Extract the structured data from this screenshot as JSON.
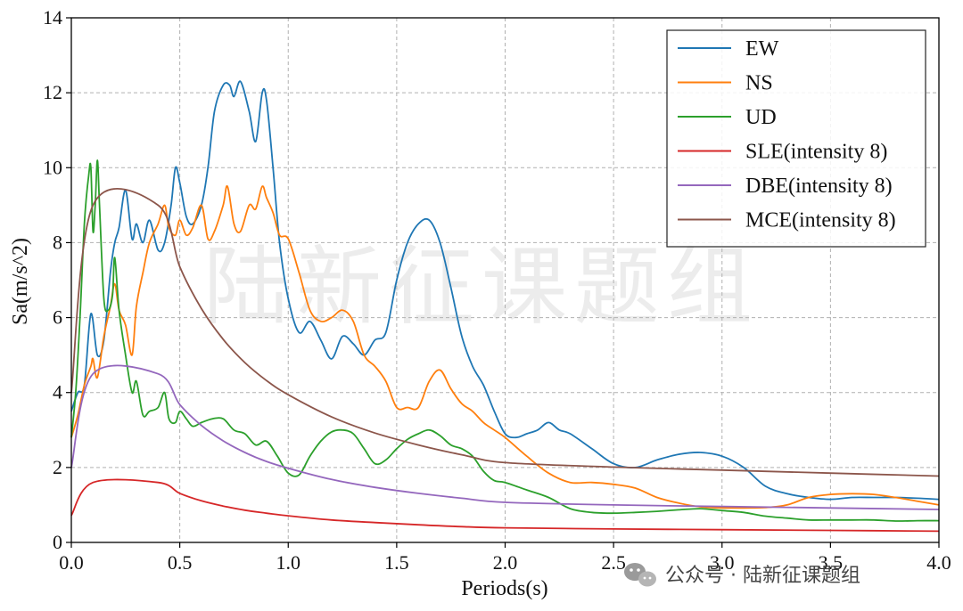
{
  "chart_data": {
    "type": "line",
    "xlabel": "Periods(s)",
    "ylabel": "Sa(m/s^2)",
    "xlim": [
      0,
      4.0
    ],
    "ylim": [
      0,
      14
    ],
    "xticks": [
      0.0,
      0.5,
      1.0,
      1.5,
      2.0,
      2.5,
      3.0,
      3.5,
      4.0
    ],
    "xtick_labels": [
      "0.0",
      "0.5",
      "1.0",
      "1.5",
      "2.0",
      "2.5",
      "3.0",
      "3.5",
      "4.0"
    ],
    "yticks": [
      0,
      2,
      4,
      6,
      8,
      10,
      12,
      14
    ],
    "ytick_labels": [
      "0",
      "2",
      "4",
      "6",
      "8",
      "10",
      "12",
      "14"
    ],
    "grid": true,
    "legend_position": "top-right",
    "series": [
      {
        "name": "EW",
        "color": "#1f77b4",
        "x": [
          0.0,
          0.03,
          0.06,
          0.09,
          0.12,
          0.15,
          0.18,
          0.2,
          0.22,
          0.25,
          0.28,
          0.3,
          0.33,
          0.36,
          0.4,
          0.43,
          0.46,
          0.48,
          0.5,
          0.53,
          0.56,
          0.6,
          0.63,
          0.66,
          0.7,
          0.73,
          0.75,
          0.78,
          0.82,
          0.85,
          0.88,
          0.9,
          0.93,
          0.96,
          1.0,
          1.05,
          1.1,
          1.15,
          1.2,
          1.25,
          1.3,
          1.35,
          1.4,
          1.45,
          1.5,
          1.55,
          1.6,
          1.65,
          1.7,
          1.75,
          1.8,
          1.85,
          1.9,
          1.95,
          2.0,
          2.05,
          2.1,
          2.15,
          2.2,
          2.25,
          2.3,
          2.4,
          2.5,
          2.6,
          2.7,
          2.8,
          2.9,
          3.0,
          3.1,
          3.2,
          3.3,
          3.4,
          3.5,
          3.6,
          3.7,
          3.8,
          3.9,
          4.0
        ],
        "y": [
          3.5,
          4.0,
          4.2,
          6.1,
          5.0,
          5.4,
          7.2,
          8.0,
          8.4,
          9.4,
          8.1,
          8.5,
          8.0,
          8.6,
          7.8,
          8.0,
          9.0,
          10.0,
          9.6,
          8.7,
          8.5,
          9.0,
          10.0,
          11.5,
          12.2,
          12.2,
          11.9,
          12.3,
          11.5,
          10.7,
          12.0,
          11.8,
          10.0,
          8.0,
          6.5,
          5.6,
          5.9,
          5.4,
          4.9,
          5.5,
          5.3,
          5.0,
          5.4,
          5.6,
          7.0,
          8.0,
          8.5,
          8.6,
          8.0,
          6.8,
          5.5,
          4.7,
          4.2,
          3.5,
          2.9,
          2.8,
          2.9,
          3.0,
          3.2,
          3.0,
          2.9,
          2.5,
          2.1,
          2.0,
          2.2,
          2.35,
          2.4,
          2.3,
          2.0,
          1.5,
          1.3,
          1.2,
          1.15,
          1.2,
          1.2,
          1.2,
          1.18,
          1.15
        ]
      },
      {
        "name": "NS",
        "color": "#ff7f0e",
        "x": [
          0.0,
          0.03,
          0.06,
          0.09,
          0.1,
          0.12,
          0.15,
          0.18,
          0.2,
          0.22,
          0.25,
          0.28,
          0.3,
          0.33,
          0.36,
          0.4,
          0.43,
          0.45,
          0.48,
          0.5,
          0.53,
          0.56,
          0.6,
          0.63,
          0.66,
          0.7,
          0.72,
          0.75,
          0.78,
          0.82,
          0.85,
          0.88,
          0.9,
          0.93,
          0.96,
          1.0,
          1.05,
          1.1,
          1.15,
          1.2,
          1.25,
          1.3,
          1.35,
          1.4,
          1.45,
          1.5,
          1.55,
          1.6,
          1.65,
          1.7,
          1.75,
          1.8,
          1.85,
          1.9,
          1.95,
          2.0,
          2.1,
          2.2,
          2.3,
          2.4,
          2.5,
          2.6,
          2.7,
          2.8,
          2.9,
          3.0,
          3.1,
          3.2,
          3.3,
          3.4,
          3.5,
          3.6,
          3.7,
          3.8,
          3.9,
          4.0
        ],
        "y": [
          2.8,
          3.4,
          4.2,
          4.7,
          4.9,
          4.4,
          5.5,
          6.3,
          6.9,
          6.2,
          5.8,
          5.0,
          6.3,
          7.2,
          8.0,
          8.5,
          9.0,
          8.4,
          8.2,
          8.6,
          8.2,
          8.4,
          9.0,
          8.1,
          8.3,
          9.0,
          9.5,
          8.5,
          8.3,
          9.0,
          8.9,
          9.5,
          9.2,
          8.8,
          8.2,
          8.1,
          7.2,
          6.2,
          5.9,
          6.0,
          6.2,
          5.9,
          5.0,
          4.7,
          4.3,
          3.6,
          3.6,
          3.6,
          4.3,
          4.6,
          4.1,
          3.7,
          3.5,
          3.2,
          3.0,
          2.8,
          2.3,
          1.85,
          1.6,
          1.6,
          1.55,
          1.45,
          1.2,
          1.05,
          0.95,
          0.92,
          0.92,
          0.93,
          1.0,
          1.2,
          1.28,
          1.3,
          1.28,
          1.2,
          1.1,
          1.0
        ]
      },
      {
        "name": "UD",
        "color": "#2ca02c",
        "x": [
          0.0,
          0.02,
          0.04,
          0.06,
          0.08,
          0.09,
          0.1,
          0.11,
          0.12,
          0.13,
          0.15,
          0.17,
          0.19,
          0.2,
          0.22,
          0.25,
          0.28,
          0.3,
          0.33,
          0.36,
          0.4,
          0.43,
          0.45,
          0.48,
          0.5,
          0.53,
          0.56,
          0.6,
          0.65,
          0.7,
          0.75,
          0.8,
          0.85,
          0.9,
          0.95,
          1.0,
          1.05,
          1.1,
          1.15,
          1.2,
          1.25,
          1.3,
          1.35,
          1.4,
          1.45,
          1.5,
          1.55,
          1.6,
          1.65,
          1.7,
          1.75,
          1.8,
          1.85,
          1.9,
          1.95,
          2.0,
          2.1,
          2.2,
          2.3,
          2.4,
          2.5,
          2.6,
          2.7,
          2.8,
          2.9,
          3.0,
          3.1,
          3.2,
          3.3,
          3.4,
          3.5,
          3.6,
          3.7,
          3.8,
          3.9,
          4.0
        ],
        "y": [
          2.8,
          4.0,
          6.0,
          8.5,
          9.8,
          10.0,
          8.3,
          9.0,
          10.2,
          9.0,
          6.5,
          6.2,
          6.6,
          7.6,
          6.2,
          5.0,
          4.0,
          4.3,
          3.4,
          3.5,
          3.6,
          4.0,
          3.3,
          3.2,
          3.5,
          3.3,
          3.1,
          3.2,
          3.3,
          3.3,
          3.0,
          2.9,
          2.6,
          2.7,
          2.3,
          1.85,
          1.8,
          2.3,
          2.7,
          2.95,
          3.0,
          2.9,
          2.5,
          2.1,
          2.2,
          2.5,
          2.75,
          2.9,
          3.0,
          2.85,
          2.6,
          2.5,
          2.3,
          1.9,
          1.65,
          1.6,
          1.4,
          1.2,
          0.9,
          0.8,
          0.78,
          0.8,
          0.83,
          0.87,
          0.9,
          0.85,
          0.8,
          0.7,
          0.65,
          0.6,
          0.6,
          0.6,
          0.6,
          0.57,
          0.58,
          0.58
        ]
      },
      {
        "name": "SLE(intensity 8)",
        "color": "#d62728",
        "x": [
          0.0,
          0.1,
          0.4,
          0.5,
          0.6,
          0.7,
          0.8,
          0.9,
          1.0,
          1.2,
          1.4,
          1.6,
          1.8,
          2.0,
          2.5,
          3.0,
          3.5,
          4.0
        ],
        "y": [
          0.72,
          1.6,
          1.6,
          1.31,
          1.11,
          0.97,
          0.86,
          0.78,
          0.71,
          0.6,
          0.53,
          0.47,
          0.42,
          0.39,
          0.36,
          0.34,
          0.32,
          0.3
        ]
      },
      {
        "name": "DBE(intensity 8)",
        "color": "#9467bd",
        "x": [
          0.0,
          0.1,
          0.4,
          0.5,
          0.6,
          0.7,
          0.8,
          0.9,
          1.0,
          1.2,
          1.4,
          1.6,
          1.8,
          2.0,
          2.5,
          3.0,
          3.5,
          4.0
        ],
        "y": [
          2.0,
          4.5,
          4.5,
          3.68,
          3.12,
          2.71,
          2.4,
          2.16,
          1.98,
          1.68,
          1.47,
          1.31,
          1.18,
          1.07,
          1.0,
          0.96,
          0.92,
          0.88
        ]
      },
      {
        "name": "MCE(intensity 8)",
        "color": "#8c564b",
        "x": [
          0.0,
          0.1,
          0.4,
          0.5,
          0.6,
          0.7,
          0.8,
          0.9,
          1.0,
          1.2,
          1.4,
          1.6,
          1.8,
          2.0,
          2.5,
          3.0,
          3.5,
          4.0
        ],
        "y": [
          4.0,
          9.0,
          9.0,
          7.36,
          6.24,
          5.42,
          4.8,
          4.32,
          3.94,
          3.35,
          2.92,
          2.6,
          2.34,
          2.13,
          2.01,
          1.93,
          1.85,
          1.77
        ]
      }
    ]
  },
  "watermark": "陆新征课题组",
  "footer": {
    "brand_text": "公众号 · 陆新征课题组"
  }
}
